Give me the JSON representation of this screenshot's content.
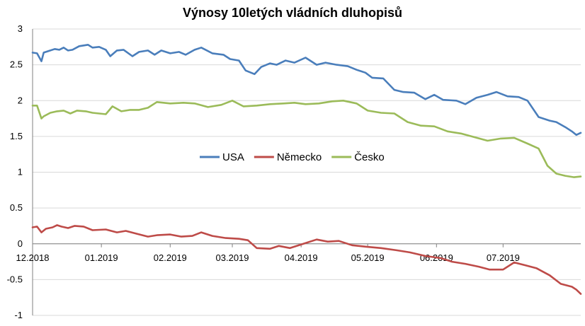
{
  "chart_data": {
    "type": "line",
    "title": "Výnosy 10letých vládních dluhopisů",
    "xlabel": "",
    "ylabel": "",
    "ylim": [
      -1,
      3
    ],
    "yticks": [
      "3",
      "2.5",
      "2",
      "1.5",
      "1",
      "0.5",
      "0",
      "-0.5",
      "-1"
    ],
    "x_start": "2018-12-01",
    "x_end": "2019-08-05",
    "xticks": [
      "12.2018",
      "01.2019",
      "02.2019",
      "03.2019",
      "04.2019",
      "05.2019",
      "06.2019",
      "07.2019"
    ],
    "legend_position": "center",
    "series": [
      {
        "name": "USA",
        "color": "#4a7ebb",
        "x": [
          "2018-12-01",
          "2018-12-03",
          "2018-12-05",
          "2018-12-06",
          "2018-12-08",
          "2018-12-11",
          "2018-12-13",
          "2018-12-15",
          "2018-12-17",
          "2018-12-19",
          "2018-12-22",
          "2018-12-26",
          "2018-12-28",
          "2018-12-31",
          "2019-01-03",
          "2019-01-05",
          "2019-01-08",
          "2019-01-11",
          "2019-01-15",
          "2019-01-18",
          "2019-01-22",
          "2019-01-25",
          "2019-01-28",
          "2019-02-01",
          "2019-02-05",
          "2019-02-08",
          "2019-02-12",
          "2019-02-15",
          "2019-02-20",
          "2019-02-25",
          "2019-02-28",
          "2019-03-04",
          "2019-03-07",
          "2019-03-11",
          "2019-03-14",
          "2019-03-18",
          "2019-03-21",
          "2019-03-25",
          "2019-03-29",
          "2019-04-03",
          "2019-04-08",
          "2019-04-12",
          "2019-04-17",
          "2019-04-22",
          "2019-04-26",
          "2019-04-30",
          "2019-05-03",
          "2019-05-08",
          "2019-05-13",
          "2019-05-17",
          "2019-05-22",
          "2019-05-27",
          "2019-05-31",
          "2019-06-04",
          "2019-06-10",
          "2019-06-14",
          "2019-06-19",
          "2019-06-24",
          "2019-06-28",
          "2019-07-03",
          "2019-07-08",
          "2019-07-12",
          "2019-07-17",
          "2019-07-22",
          "2019-07-25",
          "2019-07-29",
          "2019-08-01",
          "2019-08-03",
          "2019-08-05"
        ],
        "values": [
          2.67,
          2.66,
          2.55,
          2.67,
          2.69,
          2.72,
          2.71,
          2.74,
          2.7,
          2.71,
          2.76,
          2.78,
          2.74,
          2.75,
          2.71,
          2.62,
          2.7,
          2.71,
          2.62,
          2.68,
          2.7,
          2.64,
          2.7,
          2.66,
          2.68,
          2.64,
          2.71,
          2.74,
          2.66,
          2.64,
          2.58,
          2.56,
          2.42,
          2.37,
          2.47,
          2.52,
          2.5,
          2.56,
          2.53,
          2.6,
          2.5,
          2.53,
          2.5,
          2.48,
          2.43,
          2.39,
          2.32,
          2.31,
          2.15,
          2.12,
          2.11,
          2.02,
          2.08,
          2.01,
          2.0,
          1.95,
          2.04,
          2.08,
          2.12,
          2.06,
          2.05,
          2.0,
          1.77,
          1.72,
          1.7,
          1.63,
          1.57,
          1.52,
          1.55
        ]
      },
      {
        "name": "Německo",
        "color": "#be4b48",
        "x": [
          "2018-12-01",
          "2018-12-03",
          "2018-12-05",
          "2018-12-07",
          "2018-12-10",
          "2018-12-12",
          "2018-12-14",
          "2018-12-17",
          "2018-12-20",
          "2018-12-24",
          "2018-12-28",
          "2019-01-03",
          "2019-01-08",
          "2019-01-12",
          "2019-01-17",
          "2019-01-22",
          "2019-01-26",
          "2019-02-01",
          "2019-02-06",
          "2019-02-11",
          "2019-02-15",
          "2019-02-20",
          "2019-02-26",
          "2019-03-04",
          "2019-03-08",
          "2019-03-12",
          "2019-03-18",
          "2019-03-22",
          "2019-03-27",
          "2019-04-02",
          "2019-04-08",
          "2019-04-13",
          "2019-04-18",
          "2019-04-24",
          "2019-04-30",
          "2019-05-07",
          "2019-05-14",
          "2019-05-20",
          "2019-05-27",
          "2019-06-03",
          "2019-06-08",
          "2019-06-14",
          "2019-06-20",
          "2019-06-25",
          "2019-07-01",
          "2019-07-06",
          "2019-07-11",
          "2019-07-16",
          "2019-07-22",
          "2019-07-27",
          "2019-08-01",
          "2019-08-03",
          "2019-08-05"
        ],
        "values": [
          0.23,
          0.24,
          0.16,
          0.21,
          0.23,
          0.26,
          0.24,
          0.22,
          0.25,
          0.24,
          0.19,
          0.2,
          0.16,
          0.18,
          0.14,
          0.1,
          0.12,
          0.13,
          0.1,
          0.11,
          0.16,
          0.11,
          0.08,
          0.07,
          0.05,
          -0.06,
          -0.07,
          -0.03,
          -0.06,
          0.0,
          0.06,
          0.03,
          0.04,
          -0.02,
          -0.04,
          -0.06,
          -0.09,
          -0.12,
          -0.17,
          -0.2,
          -0.25,
          -0.28,
          -0.32,
          -0.36,
          -0.36,
          -0.26,
          -0.3,
          -0.34,
          -0.44,
          -0.56,
          -0.6,
          -0.64,
          -0.7
        ]
      },
      {
        "name": "Česko",
        "color": "#9bbb59",
        "x": [
          "2018-12-01",
          "2018-12-03",
          "2018-12-05",
          "2018-12-06",
          "2018-12-09",
          "2018-12-12",
          "2018-12-15",
          "2018-12-18",
          "2018-12-21",
          "2018-12-25",
          "2018-12-28",
          "2019-01-03",
          "2019-01-06",
          "2019-01-10",
          "2019-01-14",
          "2019-01-18",
          "2019-01-22",
          "2019-01-26",
          "2019-02-01",
          "2019-02-07",
          "2019-02-12",
          "2019-02-18",
          "2019-02-24",
          "2019-03-01",
          "2019-03-06",
          "2019-03-12",
          "2019-03-18",
          "2019-03-24",
          "2019-03-29",
          "2019-04-03",
          "2019-04-09",
          "2019-04-15",
          "2019-04-20",
          "2019-04-26",
          "2019-05-01",
          "2019-05-07",
          "2019-05-13",
          "2019-05-19",
          "2019-05-25",
          "2019-05-31",
          "2019-06-06",
          "2019-06-12",
          "2019-06-18",
          "2019-06-24",
          "2019-06-30",
          "2019-07-06",
          "2019-07-12",
          "2019-07-17",
          "2019-07-21",
          "2019-07-25",
          "2019-07-29",
          "2019-08-02",
          "2019-08-05"
        ],
        "values": [
          1.93,
          1.93,
          1.75,
          1.78,
          1.83,
          1.85,
          1.86,
          1.82,
          1.86,
          1.85,
          1.83,
          1.81,
          1.92,
          1.85,
          1.87,
          1.87,
          1.9,
          1.98,
          1.96,
          1.97,
          1.96,
          1.91,
          1.94,
          2.0,
          1.92,
          1.93,
          1.95,
          1.96,
          1.97,
          1.95,
          1.96,
          1.99,
          2.0,
          1.96,
          1.86,
          1.83,
          1.82,
          1.7,
          1.65,
          1.64,
          1.57,
          1.54,
          1.49,
          1.44,
          1.47,
          1.48,
          1.4,
          1.33,
          1.09,
          0.98,
          0.95,
          0.93,
          0.94
        ]
      }
    ]
  }
}
